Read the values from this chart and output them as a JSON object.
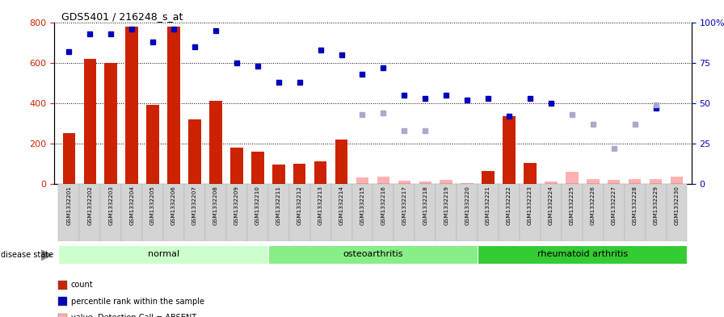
{
  "title": "GDS5401 / 216248_s_at",
  "samples": [
    "GSM1332201",
    "GSM1332202",
    "GSM1332203",
    "GSM1332204",
    "GSM1332205",
    "GSM1332206",
    "GSM1332207",
    "GSM1332208",
    "GSM1332209",
    "GSM1332210",
    "GSM1332211",
    "GSM1332212",
    "GSM1332213",
    "GSM1332214",
    "GSM1332215",
    "GSM1332216",
    "GSM1332217",
    "GSM1332218",
    "GSM1332219",
    "GSM1332220",
    "GSM1332221",
    "GSM1332222",
    "GSM1332223",
    "GSM1332224",
    "GSM1332225",
    "GSM1332226",
    "GSM1332227",
    "GSM1332228",
    "GSM1332229",
    "GSM1332230"
  ],
  "counts": [
    250,
    620,
    600,
    780,
    390,
    780,
    320,
    410,
    180,
    160,
    95,
    100,
    110,
    220,
    30,
    35,
    15,
    10,
    20,
    5,
    65,
    335,
    105,
    10,
    60,
    25,
    20,
    25,
    25,
    35
  ],
  "percentile_ranks": [
    82,
    93,
    93,
    96,
    88,
    96,
    85,
    95,
    75,
    73,
    63,
    63,
    83,
    80,
    68,
    72,
    55,
    53,
    55,
    52,
    53,
    42,
    53,
    50,
    null,
    null,
    null,
    null,
    47,
    null
  ],
  "absent_mask": [
    false,
    false,
    false,
    false,
    false,
    false,
    false,
    false,
    false,
    false,
    false,
    false,
    false,
    false,
    true,
    true,
    true,
    true,
    true,
    true,
    false,
    false,
    false,
    true,
    true,
    true,
    true,
    true,
    true,
    true
  ],
  "absent_rank_values": [
    null,
    null,
    null,
    null,
    null,
    null,
    null,
    null,
    null,
    null,
    null,
    null,
    null,
    null,
    43,
    44,
    33,
    33,
    null,
    null,
    null,
    null,
    null,
    null,
    43,
    37,
    22,
    37,
    49,
    null
  ],
  "disease_groups": [
    {
      "label": "normal",
      "start": 0,
      "end": 9
    },
    {
      "label": "osteoarthritis",
      "start": 10,
      "end": 19
    },
    {
      "label": "rheumatoid arthritis",
      "start": 20,
      "end": 29
    }
  ],
  "ylim_left": [
    0,
    800
  ],
  "ylim_right": [
    0,
    100
  ],
  "yticks_left": [
    0,
    200,
    400,
    600,
    800
  ],
  "yticks_right": [
    0,
    25,
    50,
    75,
    100
  ],
  "bar_color_present": "#cc2200",
  "bar_color_absent": "#ffb0b0",
  "dot_color_present": "#0000bb",
  "dot_color_absent": "#aaaacc",
  "background_color": "#ffffff",
  "left_ylabel_color": "#cc2200",
  "right_ylabel_color": "#0000bb",
  "group_colors": [
    "#ccffcc",
    "#88ee88",
    "#33cc33"
  ],
  "disease_state_label": "disease state"
}
